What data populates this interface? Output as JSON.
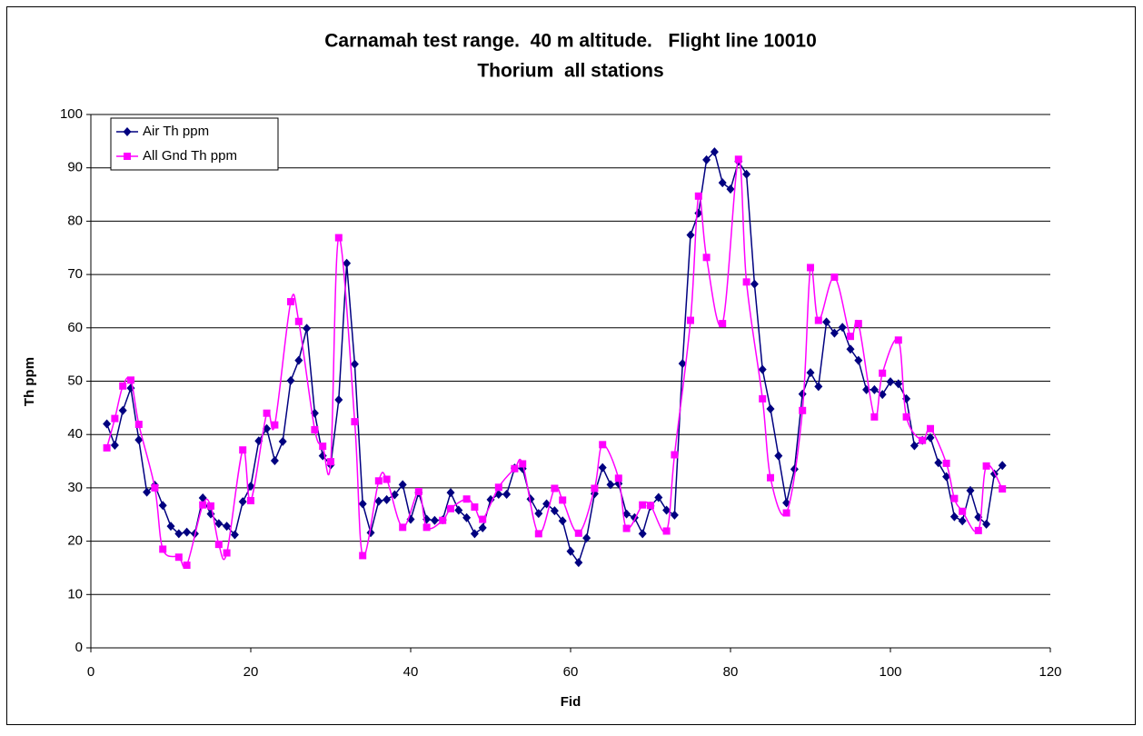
{
  "chart_data": {
    "type": "line",
    "title": "Carnamah test range.  40 m altitude.   Flight line 10010",
    "subtitle": "Thorium  all stations",
    "x_label": "Fid",
    "y_label": "Th ppm",
    "xlim": [
      0,
      120
    ],
    "xticks": [
      0,
      20,
      40,
      60,
      80,
      100,
      120
    ],
    "ylim": [
      0,
      100
    ],
    "yticks": [
      0,
      10,
      20,
      30,
      40,
      50,
      60,
      70,
      80,
      90,
      100
    ],
    "grid": true,
    "legend": "top-left",
    "series": [
      {
        "name": "Air Th ppm",
        "color": "#000080",
        "marker": "diamond",
        "smooth": false,
        "x": [
          2,
          3,
          4,
          5,
          6,
          7,
          8,
          9,
          10,
          11,
          12,
          13,
          14,
          15,
          16,
          17,
          18,
          19,
          20,
          21,
          22,
          23,
          24,
          25,
          26,
          27,
          28,
          29,
          30,
          31,
          32,
          33,
          34,
          35,
          36,
          37,
          38,
          39,
          40,
          41,
          42,
          43,
          44,
          45,
          46,
          47,
          48,
          49,
          50,
          51,
          52,
          53,
          54,
          55,
          56,
          57,
          58,
          59,
          60,
          61,
          62,
          63,
          64,
          65,
          66,
          67,
          68,
          69,
          70,
          71,
          72,
          73,
          74,
          75,
          76,
          77,
          78,
          79,
          80,
          81,
          82,
          83,
          84,
          85,
          86,
          87,
          88,
          89,
          90,
          91,
          92,
          93,
          94,
          95,
          96,
          97,
          98,
          99,
          100,
          101,
          102,
          103,
          104,
          105,
          106,
          107,
          108,
          109,
          110,
          111,
          112,
          113,
          114
        ],
        "values": [
          42,
          38,
          44.5,
          48.7,
          39,
          29.2,
          30.5,
          26.7,
          22.8,
          21.4,
          21.7,
          21.4,
          28.1,
          25.1,
          23.3,
          22.8,
          21.2,
          27.4,
          30.3,
          38.8,
          41.1,
          35.1,
          38.7,
          50.1,
          53.9,
          59.9,
          44,
          36,
          34.3,
          46.5,
          72.1,
          53.2,
          27,
          21.6,
          27.5,
          27.8,
          28.7,
          30.6,
          24.1,
          29.1,
          24.1,
          23.9,
          24,
          29.1,
          25.8,
          24.4,
          21.4,
          22.5,
          27.8,
          28.8,
          28.8,
          33.7,
          33.6,
          27.9,
          25.2,
          27,
          25.7,
          23.8,
          18.1,
          16,
          20.6,
          28.9,
          33.8,
          30.6,
          30.8,
          25.1,
          24.4,
          21.4,
          26.6,
          28.2,
          25.8,
          24.9,
          53.3,
          77.4,
          81.5,
          91.5,
          93,
          87.2,
          86,
          91.2,
          88.8,
          68.2,
          52.2,
          44.8,
          36,
          27.2,
          33.5,
          47.6,
          51.6,
          49,
          61.1,
          59,
          60.1,
          56,
          53.9,
          48.4,
          48.4,
          47.5,
          49.9,
          49.5,
          46.7,
          37.9,
          38.9,
          39.4,
          34.7,
          32.1,
          24.6,
          23.8,
          29.5,
          24.5,
          23.2,
          32.6,
          34.2
        ]
      },
      {
        "name": "All Gnd Th ppm",
        "color": "#ff00ff",
        "marker": "square",
        "smooth": true,
        "x": [
          2,
          3,
          4,
          5,
          6,
          8,
          9,
          11,
          12,
          14,
          15,
          16,
          17,
          19,
          20,
          22,
          23,
          25,
          26,
          28,
          29,
          30,
          31,
          33,
          34,
          36,
          37,
          39,
          41,
          42,
          44,
          45,
          47,
          48,
          49,
          51,
          53,
          54,
          56,
          58,
          59,
          61,
          63,
          64,
          66,
          67,
          69,
          70,
          72,
          73,
          75,
          76,
          77,
          79,
          81,
          82,
          84,
          85,
          87,
          89,
          90,
          91,
          93,
          95,
          96,
          98,
          99,
          101,
          102,
          104,
          105,
          107,
          108,
          109,
          111,
          112,
          114
        ],
        "values": [
          37.5,
          43,
          49.1,
          50.2,
          41.9,
          30,
          18.5,
          17,
          15.5,
          26.8,
          26.6,
          19.4,
          17.8,
          37.1,
          27.6,
          44,
          41.8,
          64.9,
          61.2,
          40.9,
          37.8,
          34.9,
          76.9,
          42.4,
          17.3,
          31.3,
          31.6,
          22.6,
          29.3,
          22.6,
          23.9,
          26.1,
          27.9,
          26.4,
          24.1,
          30.1,
          33.6,
          34.5,
          21.4,
          29.9,
          27.7,
          21.5,
          29.9,
          38.1,
          31.8,
          22.4,
          26.8,
          26.7,
          21.9,
          36.2,
          61.4,
          84.7,
          73.2,
          60.8,
          91.6,
          68.6,
          46.7,
          31.9,
          25.3,
          44.5,
          71.3,
          61.4,
          69.5,
          58.4,
          60.8,
          43.3,
          51.5,
          57.7,
          43.3,
          38.9,
          41.1,
          34.6,
          28,
          25.6,
          22,
          34.1,
          29.8
        ]
      }
    ]
  }
}
